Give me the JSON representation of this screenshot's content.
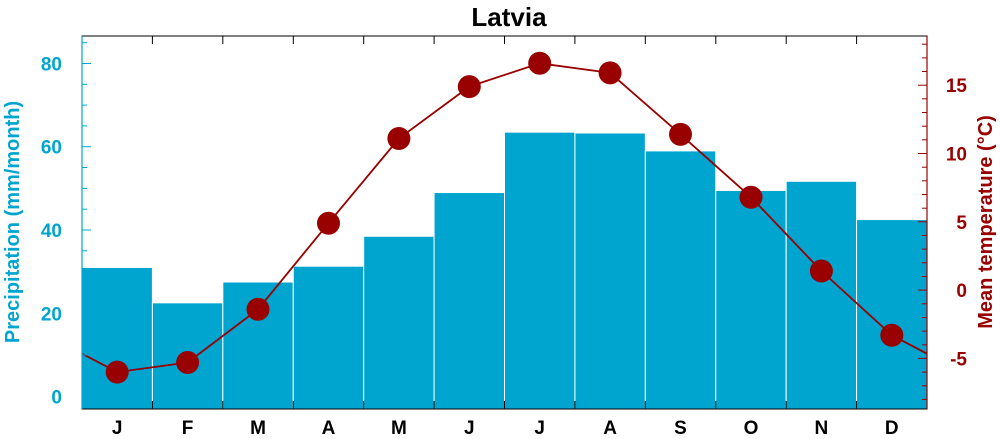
{
  "chart_data": {
    "type": "bar+line",
    "title": "Latvia",
    "categories": [
      "J",
      "F",
      "M",
      "A",
      "M",
      "J",
      "J",
      "A",
      "S",
      "O",
      "N",
      "D"
    ],
    "series": [
      {
        "type": "bar",
        "axis": "left",
        "color": "#00a5cf",
        "values": [
          31,
          22.5,
          27.5,
          31.3,
          38.5,
          49,
          63.5,
          63.3,
          59,
          49.5,
          51.7,
          42.5
        ]
      },
      {
        "type": "line",
        "axis": "right",
        "color": "#990000",
        "values": [
          -6,
          -5.3,
          -1.4,
          4.9,
          11.1,
          14.9,
          16.6,
          15.9,
          11.4,
          6.8,
          1.4,
          -3.3
        ]
      }
    ],
    "ylabel_left": "Precipitation (mm/month)",
    "ylabel_right": "Mean temperature (°C)",
    "ylim_left": [
      -3,
      86.6
    ],
    "ylim_right": [
      -8.7,
      18.6
    ],
    "yticks_left": [
      "0",
      "20",
      "40",
      "60",
      "80"
    ],
    "yticks_right": [
      "-5",
      "0",
      "5",
      "10",
      "15"
    ],
    "left_axis_color": "#00a5cf",
    "right_axis_color": "#990000",
    "grid": false,
    "legend": "none"
  }
}
